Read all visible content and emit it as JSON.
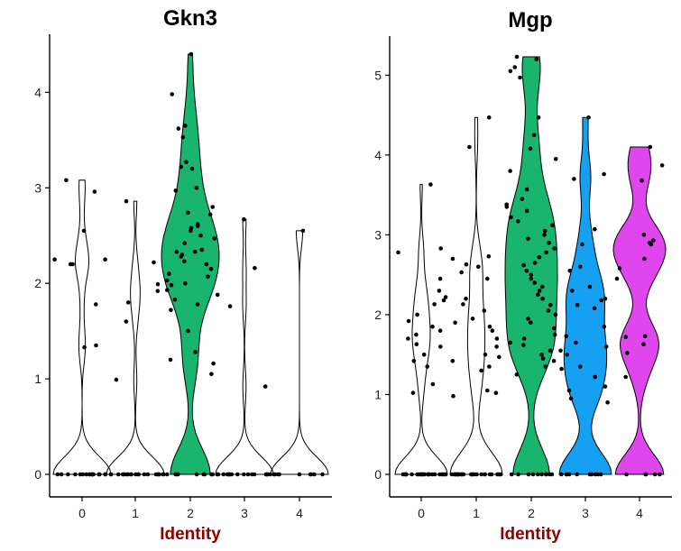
{
  "colors": {
    "cluster_2": "#19b46d",
    "cluster_3": "#16a0f2",
    "cluster_4": "#e046ee",
    "axis_label": "#8b0000"
  },
  "chart_data": [
    {
      "type": "violin",
      "title": "Gkn3",
      "xlabel": "Identity",
      "ylabel": "",
      "categories": [
        "0",
        "1",
        "2",
        "3",
        "4"
      ],
      "ylim": [
        0,
        4.4
      ],
      "yticks": [
        0,
        1,
        2,
        3,
        4
      ],
      "series": [
        {
          "category": "0",
          "max": 3.08,
          "fill": "",
          "points": [
            2.25,
            2.25,
            2.2,
            3.08,
            2.96,
            2.55,
            2.2,
            1.78,
            1.35,
            1.33,
            0,
            0,
            0,
            0,
            0,
            0,
            0,
            0,
            0,
            0,
            0,
            0,
            0,
            0,
            0,
            0,
            0,
            0
          ]
        },
        {
          "category": "1",
          "max": 2.86,
          "fill": "",
          "points": [
            1.99,
            1.92,
            1.8,
            2.86,
            2.22,
            1.6,
            0.99,
            0,
            0,
            0,
            0,
            0,
            0,
            0,
            0,
            0,
            0,
            0,
            0,
            0,
            0,
            0,
            0,
            0,
            0,
            0
          ]
        },
        {
          "category": "2",
          "max": 4.4,
          "fill": "#19b46d",
          "points": [
            4.4,
            3.98,
            3.65,
            3.62,
            3.53,
            3.27,
            3.22,
            3.2,
            3.0,
            2.97,
            2.8,
            2.74,
            2.72,
            2.62,
            2.6,
            2.58,
            2.55,
            2.5,
            2.47,
            2.42,
            2.35,
            2.33,
            2.33,
            2.3,
            2.28,
            2.23,
            2.2,
            2.15,
            2.1,
            2.07,
            2.03,
            2.0,
            1.98,
            1.93,
            1.88,
            1.83,
            1.78,
            1.72,
            1.5,
            1.28,
            1.2,
            1.16,
            1.05,
            0,
            0,
            0,
            0,
            0,
            0,
            0,
            0,
            0,
            0,
            0,
            0
          ]
        },
        {
          "category": "3",
          "max": 2.67,
          "fill": "",
          "points": [
            2.67,
            2.16,
            1.76,
            0.92,
            0,
            0,
            0,
            0,
            0,
            0,
            0,
            0,
            0,
            0,
            0,
            0,
            0,
            0,
            0,
            0,
            0,
            0
          ]
        },
        {
          "category": "4",
          "max": 2.55,
          "fill": "",
          "points": [
            2.55,
            0,
            0,
            0,
            0,
            0,
            0,
            0,
            0,
            0
          ]
        }
      ]
    },
    {
      "type": "violin",
      "title": "Mgp",
      "xlabel": "Identity",
      "ylabel": "",
      "categories": [
        "0",
        "1",
        "2",
        "3",
        "4"
      ],
      "ylim": [
        0,
        5.25
      ],
      "yticks": [
        0,
        1,
        2,
        3,
        4,
        5
      ],
      "series": [
        {
          "category": "0",
          "max": 3.63,
          "fill": "",
          "points": [
            3.63,
            2.83,
            2.78,
            2.45,
            2.3,
            2.22,
            2.18,
            2.13,
            2.0,
            1.92,
            1.85,
            1.8,
            1.75,
            1.7,
            1.63,
            1.6,
            1.5,
            1.42,
            1.35,
            1.13,
            1.02,
            0,
            0,
            0,
            0,
            0,
            0,
            0,
            0,
            0,
            0,
            0,
            0,
            0,
            0,
            0,
            0,
            0,
            0,
            0,
            0,
            0,
            0,
            0,
            0
          ]
        },
        {
          "category": "1",
          "max": 4.47,
          "fill": "",
          "points": [
            4.47,
            4.1,
            2.73,
            2.7,
            2.63,
            2.6,
            2.53,
            2.45,
            2.2,
            2.13,
            2.05,
            1.95,
            1.9,
            1.85,
            1.8,
            1.7,
            1.6,
            1.5,
            1.47,
            1.42,
            1.35,
            1.3,
            1.05,
            1.02,
            0.98,
            0,
            0,
            0,
            0,
            0,
            0,
            0,
            0,
            0,
            0,
            0,
            0,
            0,
            0,
            0,
            0,
            0,
            0,
            0,
            0,
            0,
            0,
            0,
            0,
            0,
            0,
            0
          ]
        },
        {
          "category": "2",
          "max": 5.23,
          "fill": "#19b46d",
          "points": [
            5.23,
            5.2,
            5.1,
            5.05,
            4.97,
            4.47,
            4.25,
            4.08,
            3.95,
            3.8,
            3.57,
            3.45,
            3.38,
            3.35,
            3.3,
            3.22,
            3.17,
            3.12,
            3.05,
            3.0,
            2.95,
            2.9,
            2.83,
            2.78,
            2.72,
            2.65,
            2.62,
            2.55,
            2.5,
            2.45,
            2.4,
            2.35,
            2.3,
            2.25,
            2.2,
            2.12,
            2.05,
            2.0,
            1.95,
            1.9,
            1.83,
            1.75,
            1.7,
            1.65,
            1.62,
            1.55,
            1.5,
            1.45,
            1.42,
            1.35,
            1.25,
            0,
            0,
            0,
            0,
            0,
            0,
            0,
            0,
            0,
            0
          ]
        },
        {
          "category": "3",
          "max": 4.47,
          "fill": "#16a0f2",
          "points": [
            4.47,
            3.76,
            3.7,
            3.07,
            2.88,
            2.6,
            2.55,
            2.35,
            2.3,
            2.2,
            2.18,
            2.12,
            2.08,
            1.85,
            1.73,
            1.65,
            1.6,
            1.55,
            1.5,
            1.35,
            1.32,
            1.22,
            1.1,
            1.05,
            0.95,
            0.9,
            0,
            0,
            0,
            0,
            0,
            0,
            0,
            0,
            0,
            0
          ]
        },
        {
          "category": "4",
          "max": 4.1,
          "fill": "#e046ee",
          "points": [
            4.1,
            3.87,
            3.68,
            3.0,
            2.93,
            2.9,
            2.88,
            2.7,
            2.58,
            2.45,
            1.73,
            1.72,
            1.63,
            1.52,
            1.22,
            0,
            0,
            0,
            0,
            0
          ]
        }
      ]
    }
  ]
}
